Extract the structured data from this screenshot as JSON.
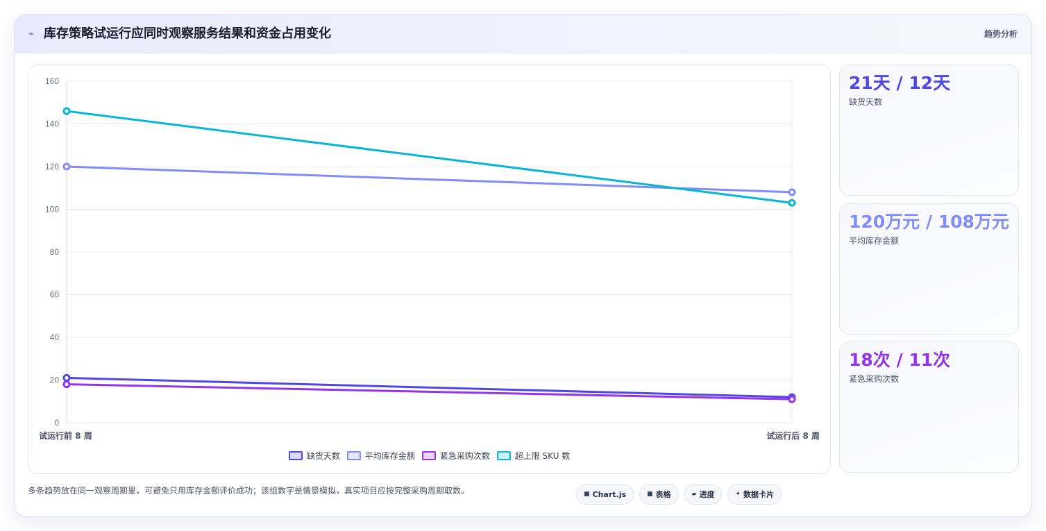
{
  "header": {
    "title": "库存策略试运行应同时观察服务结果和资金占用变化",
    "tag": "趋势分析",
    "icon": "trend-line-icon"
  },
  "chart_data": {
    "type": "line",
    "x": [
      "试运行前 8 周",
      "试运行后 8 周"
    ],
    "ylim": [
      0,
      160
    ],
    "yticks": [
      0,
      20,
      40,
      60,
      80,
      100,
      120,
      140,
      160
    ],
    "grid": true,
    "legend_position": "bottom",
    "series": [
      {
        "name": "缺货天数",
        "values": [
          21,
          12
        ],
        "color": "#4f46e5"
      },
      {
        "name": "平均库存金额",
        "values": [
          120,
          108
        ],
        "color": "#818cf8"
      },
      {
        "name": "紧急采购次数",
        "values": [
          18,
          11
        ],
        "color": "#9333ea"
      },
      {
        "name": "超上限 SKU 数",
        "values": [
          146,
          103
        ],
        "color": "#06b6d4"
      }
    ]
  },
  "kpis": [
    {
      "value": "21天 / 12天",
      "label": "缺货天数",
      "color": "#4f46e5"
    },
    {
      "value": "120万元 / 108万元",
      "label": "平均库存金额",
      "color": "#818cf8"
    },
    {
      "value": "18次 / 11次",
      "label": "紧急采购次数",
      "color": "#9333ea"
    }
  ],
  "footer": {
    "note": "多条趋势放在同一观察周期里，可避免只用库存金额评价成功；该组数字是情景模拟，真实项目应按完整采购周期取数。"
  },
  "chips": [
    {
      "icon": "■",
      "label": "Chart.js"
    },
    {
      "icon": "■",
      "label": "表格"
    },
    {
      "icon": "▰",
      "label": "进度"
    },
    {
      "icon": "✦",
      "label": "数据卡片"
    }
  ]
}
